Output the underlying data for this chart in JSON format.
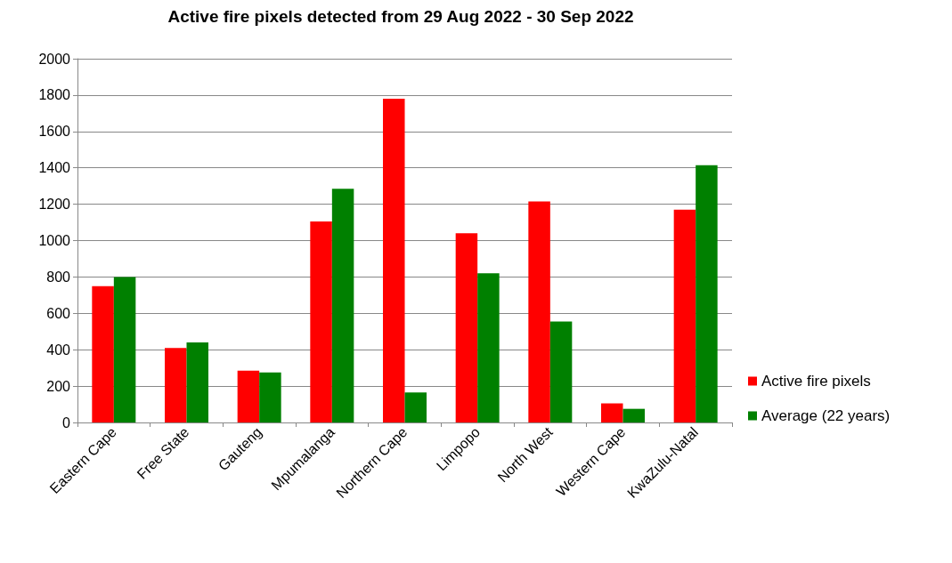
{
  "chart_data": {
    "type": "bar",
    "title": "Active fire pixels detected from 29 Aug 2022 - 30 Sep 2022",
    "categories": [
      "Eastern Cape",
      "Free State",
      "Gauteng",
      "Mpumalanga",
      "Northern Cape",
      "Limpopo",
      "North West",
      "Western Cape",
      "KwaZulu-Natal"
    ],
    "series": [
      {
        "name": "Active fire pixels",
        "color": "#ff0000",
        "values": [
          750,
          410,
          285,
          1105,
          1780,
          1040,
          1215,
          105,
          1170
        ]
      },
      {
        "name": "Average (22 years)",
        "color": "#008000",
        "values": [
          800,
          440,
          275,
          1285,
          165,
          820,
          555,
          75,
          1415
        ]
      }
    ],
    "ylim": [
      0,
      2000
    ],
    "yticks": [
      0,
      200,
      400,
      600,
      800,
      1000,
      1200,
      1400,
      1600,
      1800,
      2000
    ],
    "grid": "y",
    "legend": "right"
  }
}
